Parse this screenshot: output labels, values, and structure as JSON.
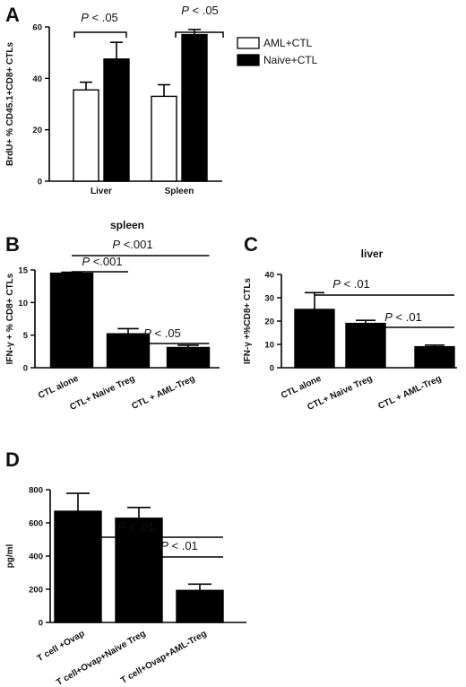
{
  "chart_data": [
    {
      "id": "A",
      "panel_letter": "A",
      "type": "bar",
      "title": "",
      "xlabel": "",
      "ylabel": "BrdU+ % CD45.1+CD8+ CTLs",
      "categories": [
        "Liver",
        "Spleen"
      ],
      "series": [
        {
          "name": "AML+CTL",
          "values": [
            35.5,
            33
          ],
          "errors": [
            3,
            4.5
          ],
          "color": "#ffffff"
        },
        {
          "name": "Naive+CTL",
          "values": [
            47.5,
            57
          ],
          "errors": [
            6.5,
            2
          ],
          "color": "#000000"
        }
      ],
      "ylim": [
        0,
        60
      ],
      "yticks": [
        0,
        20,
        40,
        60
      ],
      "legend_position": "right",
      "annotations": [
        {
          "prefix": "P",
          "text": " < .05",
          "category": "Liver"
        },
        {
          "prefix": "P",
          "text": " < .05",
          "category": "Spleen"
        }
      ]
    },
    {
      "id": "B",
      "panel_letter": "B",
      "type": "bar",
      "title": "spleen",
      "xlabel": "",
      "ylabel": "IFN-γ + % CD8+ CTLs",
      "categories": [
        "CTL alone",
        "CTL+ Naive Treg",
        "CTL + AML-Treg"
      ],
      "values": [
        14.5,
        5.2,
        3.1
      ],
      "errors": [
        0.15,
        0.8,
        0.35
      ],
      "ylim": [
        0,
        15
      ],
      "yticks": [
        0,
        5,
        10,
        15
      ],
      "annotations": [
        {
          "prefix": "P",
          "text": " <.001",
          "from": 0,
          "to": 2
        },
        {
          "prefix": "P",
          "text": " <.001",
          "from": 0,
          "to": 1
        },
        {
          "prefix": "P",
          "text": " < .05",
          "from": 1,
          "to": 2
        }
      ]
    },
    {
      "id": "C",
      "panel_letter": "C",
      "type": "bar",
      "title": "liver",
      "xlabel": "",
      "ylabel": "IFN-γ +%CD8+ CTLs",
      "categories": [
        "CTL alone",
        "CTL+ Naive Treg",
        "CTL + AML-Treg"
      ],
      "values": [
        25,
        19,
        9
      ],
      "errors": [
        7.2,
        1.3,
        0.7
      ],
      "ylim": [
        0,
        40
      ],
      "yticks": [
        0,
        10,
        20,
        30,
        40
      ],
      "annotations": [
        {
          "prefix": "P",
          "text": " < .01",
          "from": 0,
          "to": 2
        },
        {
          "prefix": "P",
          "text": " < .01",
          "from": 1,
          "to": 2
        }
      ]
    },
    {
      "id": "D",
      "panel_letter": "D",
      "type": "bar",
      "title": "",
      "xlabel": "",
      "ylabel": "pg/ml",
      "categories": [
        "T cell +Ovap",
        "T cell+Ovap+Naive Treg",
        "T cell+Ovap+AML-Treg"
      ],
      "values": [
        670,
        628,
        193
      ],
      "errors": [
        108,
        65,
        38
      ],
      "ylim": [
        0,
        800
      ],
      "yticks": [
        0,
        200,
        400,
        600,
        800
      ],
      "annotations": [
        {
          "prefix": "P",
          "text": " < .01",
          "from": 0,
          "to": 2
        },
        {
          "prefix": "P",
          "text": " < .01",
          "from": 1,
          "to": 2
        }
      ]
    }
  ]
}
